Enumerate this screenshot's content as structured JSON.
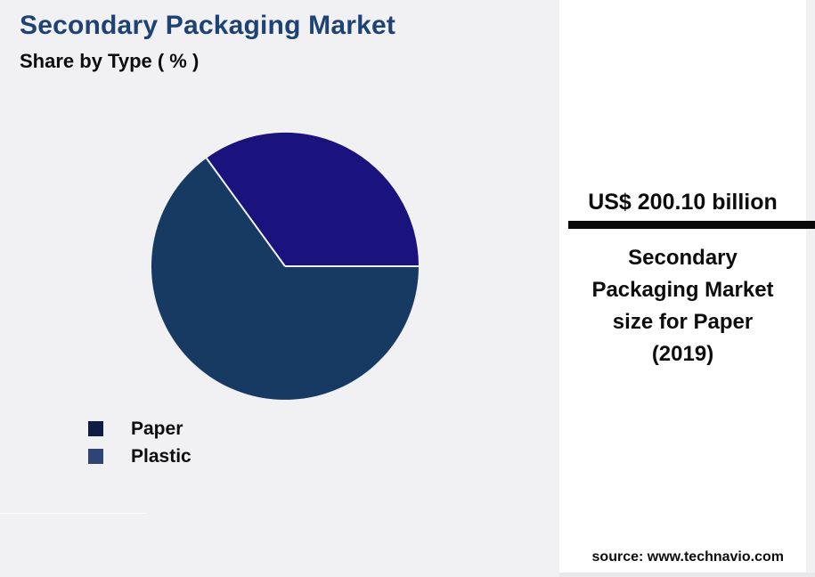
{
  "header": {
    "title": "Secondary Packaging Market",
    "subtitle": "Share by Type ( % )"
  },
  "chart_data": {
    "type": "pie",
    "title": "Secondary Packaging Market",
    "subtitle": "Share by Type ( % )",
    "labels": [
      "Paper",
      "Plastic"
    ],
    "values": [
      65,
      35
    ],
    "unit": "%",
    "slice_colors": [
      "#173A63",
      "#1A137E"
    ],
    "legend_colors": [
      "#0D1D43",
      "#2E4474"
    ],
    "start_angle_deg": 126,
    "direction": "counterclockwise",
    "separator_color": "#F1F1F4",
    "legend_position": "bottom-left",
    "annotation": {
      "value": "US$ 200.10 billion",
      "label": "Secondary Packaging Market size for Paper (2019)"
    }
  },
  "legend": {
    "items": [
      {
        "label": "Paper",
        "color": "#0D1D43"
      },
      {
        "label": "Plastic",
        "color": "#2E4474"
      }
    ]
  },
  "panel": {
    "value": "US$ 200.10 billion",
    "description_lines": [
      "Secondary",
      "Packaging Market",
      "size for Paper",
      "(2019)"
    ],
    "source": "source: www.technavio.com"
  },
  "colors": {
    "background": "#F1F1F4",
    "panel": "#FFFFFF",
    "divider": "#0A0A0A",
    "title": "#1E4273",
    "text": "#0D0D0D"
  }
}
